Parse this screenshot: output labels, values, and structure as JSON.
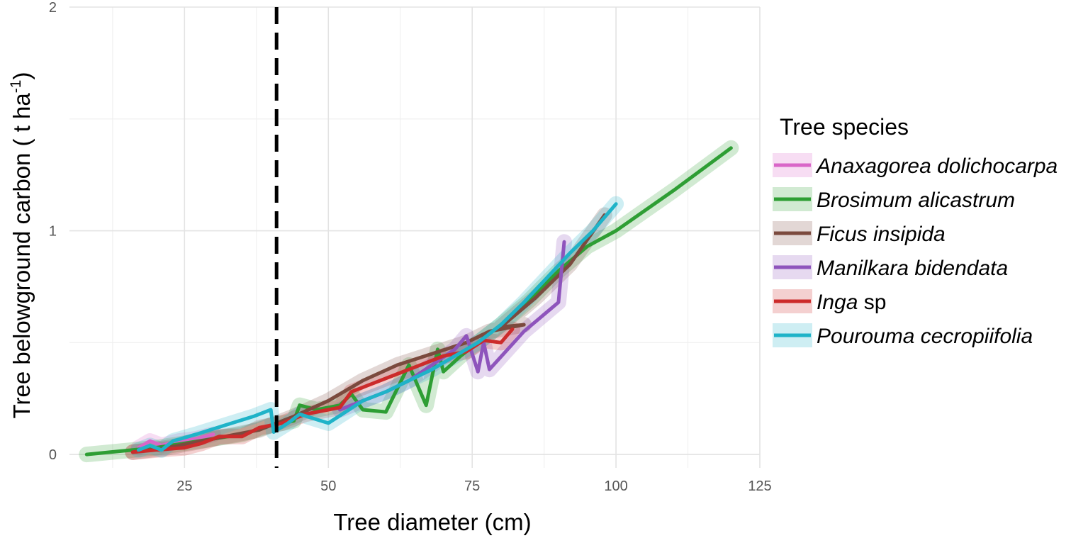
{
  "chart_data": {
    "type": "line",
    "title": "",
    "xlabel": "Tree diameter (cm)",
    "ylabel_main": "Tree belowground carbon ( t ha",
    "ylabel_sup": "-1",
    "ylabel_close": ")",
    "xlim": [
      5,
      125
    ],
    "ylim": [
      -0.06,
      2.0
    ],
    "x_ticks": [
      25,
      50,
      75,
      100,
      125
    ],
    "x_tick_labels": [
      "25",
      "50",
      "75",
      "100",
      "125"
    ],
    "y_ticks": [
      0,
      1,
      2
    ],
    "y_tick_labels": [
      "0",
      "1",
      "2"
    ],
    "x_minor_ticks": [
      12.5,
      37.5,
      62.5,
      87.5,
      112.5
    ],
    "y_minor_ticks": [
      0.5,
      1.5
    ],
    "grid": true,
    "reference_line": {
      "x": 41,
      "style": "dashed",
      "color": "#000000"
    },
    "legend": {
      "title": "Tree species",
      "placement": "right"
    },
    "series": [
      {
        "name": "Anaxagorea dolichocarpa",
        "name_italic": "Anaxagorea dolichocarpa",
        "name_plain": "",
        "color": "#D966C8",
        "points": [
          [
            17,
            0.03
          ],
          [
            19,
            0.06
          ],
          [
            21,
            0.04
          ],
          [
            24,
            0.06
          ],
          [
            27,
            0.07
          ],
          [
            30,
            0.09
          ]
        ]
      },
      {
        "name": "Brosimum alicastrum",
        "name_italic": "Brosimum alicastrum",
        "name_plain": "",
        "color": "#2E9E34",
        "points": [
          [
            8,
            0.0
          ],
          [
            12,
            0.01
          ],
          [
            16,
            0.02
          ],
          [
            20,
            0.03
          ],
          [
            25,
            0.05
          ],
          [
            30,
            0.07
          ],
          [
            35,
            0.09
          ],
          [
            40,
            0.13
          ],
          [
            44,
            0.15
          ],
          [
            45,
            0.22
          ],
          [
            48,
            0.2
          ],
          [
            52,
            0.22
          ],
          [
            54,
            0.27
          ],
          [
            56,
            0.2
          ],
          [
            60,
            0.19
          ],
          [
            64,
            0.4
          ],
          [
            67,
            0.22
          ],
          [
            69,
            0.47
          ],
          [
            70,
            0.37
          ],
          [
            73,
            0.44
          ],
          [
            76,
            0.5
          ],
          [
            80,
            0.58
          ],
          [
            85,
            0.69
          ],
          [
            90,
            0.82
          ],
          [
            95,
            0.93
          ],
          [
            100,
            1.0
          ],
          [
            110,
            1.18
          ],
          [
            120,
            1.37
          ]
        ]
      },
      {
        "name": "Ficus insipida",
        "name_italic": "Ficus insipida",
        "name_plain": "",
        "color": "#7B4A3E",
        "points": [
          [
            16,
            0.01
          ],
          [
            22,
            0.03
          ],
          [
            30,
            0.07
          ],
          [
            38,
            0.11
          ],
          [
            44,
            0.17
          ],
          [
            50,
            0.24
          ],
          [
            56,
            0.33
          ],
          [
            62,
            0.4
          ],
          [
            68,
            0.45
          ],
          [
            74,
            0.5
          ],
          [
            78,
            0.55
          ],
          [
            84,
            0.58
          ],
          [
            80,
            0.57
          ],
          [
            86,
            0.7
          ],
          [
            92,
            0.85
          ],
          [
            98,
            1.07
          ]
        ]
      },
      {
        "name": "Manilkara bidendata",
        "name_italic": "Manilkara bidendata",
        "name_plain": "",
        "color": "#8E54BC",
        "points": [
          [
            52,
            0.2
          ],
          [
            56,
            0.24
          ],
          [
            60,
            0.28
          ],
          [
            64,
            0.33
          ],
          [
            68,
            0.4
          ],
          [
            72,
            0.47
          ],
          [
            74,
            0.53
          ],
          [
            76,
            0.37
          ],
          [
            77,
            0.5
          ],
          [
            78,
            0.38
          ],
          [
            84,
            0.55
          ],
          [
            90,
            0.68
          ],
          [
            91,
            0.95
          ]
        ]
      },
      {
        "name": "Inga sp",
        "name_italic": "Inga",
        "name_plain": " sp",
        "color": "#CC2B2B",
        "points": [
          [
            16,
            0.01
          ],
          [
            20,
            0.02
          ],
          [
            25,
            0.03
          ],
          [
            28,
            0.05
          ],
          [
            31,
            0.08
          ],
          [
            35,
            0.08
          ],
          [
            38,
            0.12
          ],
          [
            42,
            0.14
          ],
          [
            46,
            0.18
          ],
          [
            50,
            0.2
          ],
          [
            52,
            0.21
          ],
          [
            54,
            0.28
          ],
          [
            58,
            0.32
          ],
          [
            62,
            0.36
          ],
          [
            66,
            0.4
          ],
          [
            70,
            0.44
          ],
          [
            74,
            0.46
          ],
          [
            77,
            0.51
          ],
          [
            80,
            0.5
          ],
          [
            82,
            0.56
          ]
        ]
      },
      {
        "name": "Pourouma cecropiifolia",
        "name_italic": "Pourouma cecropiifolia",
        "name_plain": "",
        "color": "#1FB3C8",
        "points": [
          [
            17,
            0.02
          ],
          [
            19,
            0.04
          ],
          [
            21,
            0.02
          ],
          [
            23,
            0.06
          ],
          [
            27,
            0.09
          ],
          [
            32,
            0.13
          ],
          [
            37,
            0.17
          ],
          [
            40,
            0.2
          ],
          [
            40.5,
            0.1
          ],
          [
            43,
            0.14
          ],
          [
            45,
            0.18
          ],
          [
            50,
            0.14
          ],
          [
            53,
            0.19
          ],
          [
            56,
            0.24
          ],
          [
            60,
            0.28
          ],
          [
            64,
            0.33
          ],
          [
            68,
            0.38
          ],
          [
            72,
            0.44
          ],
          [
            76,
            0.5
          ],
          [
            80,
            0.58
          ],
          [
            84,
            0.68
          ],
          [
            88,
            0.79
          ],
          [
            92,
            0.9
          ],
          [
            96,
            1.0
          ],
          [
            100,
            1.12
          ]
        ]
      }
    ]
  }
}
